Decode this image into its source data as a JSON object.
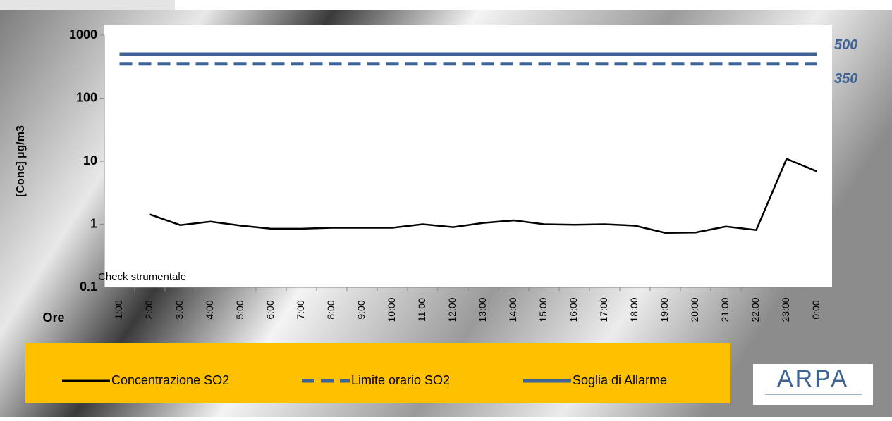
{
  "chart_data": {
    "type": "line",
    "y_label": "[Conc] µg/m3",
    "x_label": "Ore",
    "annotation": "Check strumentale",
    "log_scale": true,
    "ylim": [
      0.1,
      1000
    ],
    "yticks": [
      0.1,
      1,
      10,
      100,
      1000
    ],
    "categories": [
      "1:00",
      "2:00",
      "3:00",
      "4:00",
      "5:00",
      "6:00",
      "7:00",
      "8:00",
      "9:00",
      "10:00",
      "11:00",
      "12:00",
      "13:00",
      "14:00",
      "15:00",
      "16:00",
      "17:00",
      "18:00",
      "19:00",
      "20:00",
      "21:00",
      "22:00",
      "23:00",
      "0:00"
    ],
    "series": [
      {
        "name": "Concentrazione SO2",
        "color": "#000000",
        "style": "solid",
        "values": [
          null,
          1.43,
          0.97,
          1.1,
          0.95,
          0.85,
          0.85,
          0.88,
          0.88,
          0.88,
          1.0,
          0.9,
          1.05,
          1.15,
          1.0,
          0.98,
          1.0,
          0.95,
          0.73,
          0.74,
          0.92,
          0.81,
          10.9,
          6.9
        ]
      },
      {
        "name": "Limite orario SO2",
        "color": "#3f6494",
        "style": "dashed",
        "values": [
          350,
          350,
          350,
          350,
          350,
          350,
          350,
          350,
          350,
          350,
          350,
          350,
          350,
          350,
          350,
          350,
          350,
          350,
          350,
          350,
          350,
          350,
          350,
          350
        ]
      },
      {
        "name": "Soglia di Allarme",
        "color": "#3f6494",
        "style": "solid",
        "values": [
          500,
          500,
          500,
          500,
          500,
          500,
          500,
          500,
          500,
          500,
          500,
          500,
          500,
          500,
          500,
          500,
          500,
          500,
          500,
          500,
          500,
          500,
          500,
          500
        ]
      }
    ],
    "legend_color": "#ffc000",
    "logo": "ARPA"
  }
}
